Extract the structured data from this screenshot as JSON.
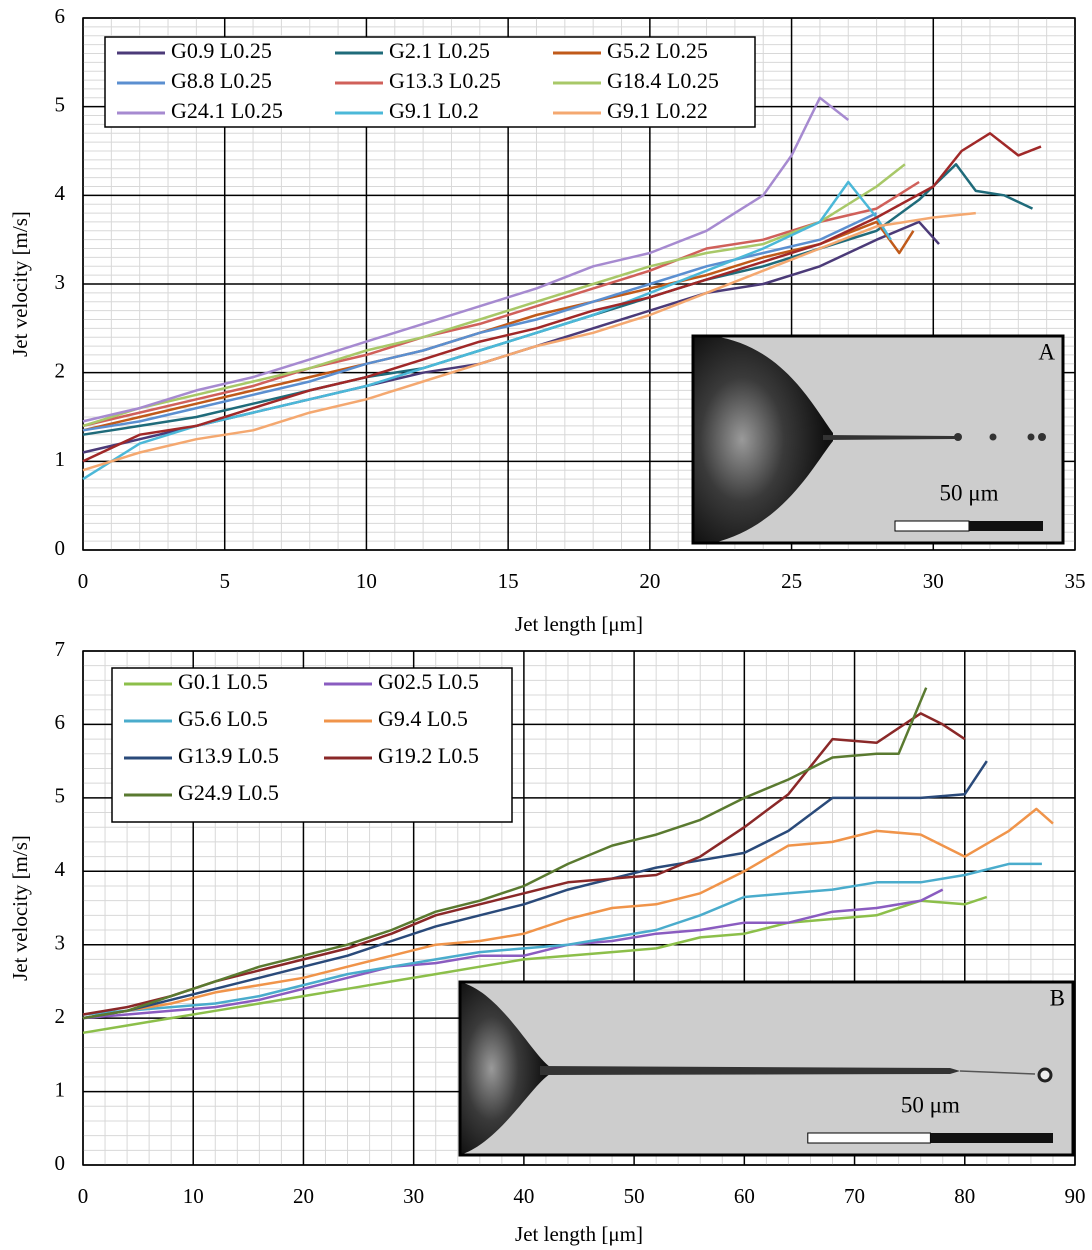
{
  "chart_data": [
    {
      "type": "line",
      "xlabel": "Jet length [μm]",
      "ylabel": "Jet velocity [m/s]",
      "xlim": [
        0,
        35
      ],
      "xticks": [
        0,
        5,
        10,
        15,
        20,
        25,
        30,
        35
      ],
      "ylim": [
        0,
        6
      ],
      "yticks": [
        0,
        1,
        2,
        3,
        4,
        5,
        6
      ],
      "grid": true,
      "minor_grid": {
        "x": 5,
        "y": 10
      },
      "legend": "upper left",
      "inset": {
        "label": "A",
        "scale_label": "50 μm"
      },
      "series": [
        {
          "name": "G0.9 L0.25",
          "color": "#4b3a78",
          "x": [
            0,
            2,
            4,
            6,
            8,
            10,
            12,
            14,
            16,
            18,
            20,
            22,
            24,
            26,
            28,
            29.5,
            30.2
          ],
          "values": [
            1.1,
            1.25,
            1.4,
            1.55,
            1.7,
            1.85,
            2.0,
            2.1,
            2.3,
            2.5,
            2.7,
            2.9,
            3.0,
            3.2,
            3.5,
            3.7,
            3.45
          ]
        },
        {
          "name": "G2.1 L0.25",
          "color": "#1f6b7a",
          "x": [
            0,
            2,
            4,
            6,
            8,
            10,
            12,
            14,
            16,
            18,
            20,
            22,
            24,
            26,
            28,
            29.5,
            30.8,
            31.5,
            32.5,
            33.5
          ],
          "values": [
            1.3,
            1.4,
            1.5,
            1.65,
            1.8,
            1.95,
            2.05,
            2.25,
            2.45,
            2.65,
            2.85,
            3.05,
            3.2,
            3.4,
            3.6,
            3.95,
            4.35,
            4.05,
            4.0,
            3.85
          ]
        },
        {
          "name": "G5.2 L0.25",
          "color": "#c05a1a",
          "x": [
            0,
            2,
            4,
            6,
            8,
            10,
            12,
            14,
            16,
            18,
            20,
            22,
            24,
            26,
            28,
            28.8,
            29.3
          ],
          "values": [
            1.35,
            1.5,
            1.65,
            1.8,
            1.95,
            2.1,
            2.25,
            2.45,
            2.65,
            2.8,
            2.95,
            3.1,
            3.3,
            3.45,
            3.7,
            3.35,
            3.6
          ]
        },
        {
          "name": "G8.8 L0.25",
          "color": "#5b8fd0",
          "x": [
            0,
            2,
            4,
            6,
            8,
            10,
            12,
            14,
            16,
            18,
            20,
            22,
            24,
            26,
            28
          ],
          "values": [
            1.35,
            1.45,
            1.6,
            1.75,
            1.9,
            2.1,
            2.25,
            2.45,
            2.6,
            2.8,
            3.0,
            3.2,
            3.35,
            3.5,
            3.8
          ]
        },
        {
          "name": "G13.3 L0.25",
          "color": "#d0605a",
          "x": [
            0,
            2,
            4,
            6,
            8,
            10,
            12,
            14,
            16,
            18,
            20,
            22,
            24,
            26,
            28,
            29.5
          ],
          "values": [
            1.4,
            1.55,
            1.7,
            1.85,
            2.05,
            2.2,
            2.4,
            2.55,
            2.75,
            2.95,
            3.15,
            3.4,
            3.5,
            3.7,
            3.85,
            4.15
          ]
        },
        {
          "name": "G18.4 L0.25",
          "color": "#a8c868",
          "x": [
            0,
            2,
            4,
            6,
            8,
            10,
            12,
            14,
            16,
            18,
            20,
            22,
            24,
            26,
            28,
            29
          ],
          "values": [
            1.4,
            1.6,
            1.75,
            1.9,
            2.05,
            2.25,
            2.4,
            2.6,
            2.8,
            3.0,
            3.2,
            3.35,
            3.45,
            3.7,
            4.1,
            4.35
          ]
        },
        {
          "name": "G24.1 L0.25",
          "color": "#a68ad0",
          "x": [
            0,
            2,
            4,
            6,
            8,
            10,
            12,
            14,
            16,
            18,
            20,
            22,
            24,
            25,
            26,
            27
          ],
          "values": [
            1.45,
            1.6,
            1.8,
            1.95,
            2.15,
            2.35,
            2.55,
            2.75,
            2.95,
            3.2,
            3.35,
            3.6,
            4.0,
            4.45,
            5.1,
            4.85
          ]
        },
        {
          "name": "G9.1 L0.2",
          "color": "#4bb8d8",
          "x": [
            0,
            2,
            4,
            6,
            8,
            10,
            12,
            14,
            16,
            18,
            20,
            22,
            24,
            26,
            27,
            28,
            28.5
          ],
          "values": [
            0.8,
            1.2,
            1.4,
            1.55,
            1.7,
            1.85,
            2.05,
            2.25,
            2.45,
            2.65,
            2.9,
            3.15,
            3.4,
            3.7,
            4.15,
            3.75,
            3.5
          ]
        },
        {
          "name": "G9.1 L0.22",
          "color": "#f4a870",
          "x": [
            0,
            2,
            4,
            6,
            8,
            10,
            12,
            14,
            16,
            18,
            20,
            22,
            24,
            26,
            28,
            30,
            31.5
          ],
          "values": [
            0.9,
            1.1,
            1.25,
            1.35,
            1.55,
            1.7,
            1.9,
            2.1,
            2.3,
            2.45,
            2.65,
            2.9,
            3.15,
            3.4,
            3.65,
            3.75,
            3.8
          ]
        },
        {
          "color": "#a02828",
          "x": [
            0,
            2,
            4,
            6,
            8,
            10,
            12,
            14,
            16,
            18,
            20,
            22,
            24,
            26,
            28,
            30,
            31,
            32,
            33,
            33.8
          ],
          "values": [
            1.0,
            1.3,
            1.4,
            1.6,
            1.8,
            1.95,
            2.15,
            2.35,
            2.5,
            2.7,
            2.85,
            3.05,
            3.25,
            3.45,
            3.75,
            4.1,
            4.5,
            4.7,
            4.45,
            4.55
          ]
        }
      ]
    },
    {
      "type": "line",
      "xlabel": "Jet length [μm]",
      "ylabel": "Jet velocity [m/s]",
      "xlim": [
        0,
        90
      ],
      "xticks": [
        0,
        10,
        20,
        30,
        40,
        50,
        60,
        70,
        80,
        90
      ],
      "ylim": [
        0,
        7
      ],
      "yticks": [
        0,
        1,
        2,
        3,
        4,
        5,
        6,
        7
      ],
      "grid": true,
      "minor_grid": {
        "x": 5,
        "y": 5
      },
      "legend": "upper left",
      "inset": {
        "label": "B",
        "scale_label": "50 μm"
      },
      "series": [
        {
          "name": "G0.1 L0.5",
          "color": "#8cbf4a",
          "x": [
            0,
            4,
            8,
            12,
            16,
            20,
            24,
            28,
            32,
            36,
            40,
            44,
            48,
            52,
            56,
            60,
            64,
            68,
            72,
            76,
            80,
            82
          ],
          "values": [
            1.8,
            1.9,
            2.0,
            2.1,
            2.2,
            2.3,
            2.4,
            2.5,
            2.6,
            2.7,
            2.8,
            2.85,
            2.9,
            2.95,
            3.1,
            3.15,
            3.3,
            3.35,
            3.4,
            3.6,
            3.55,
            3.65
          ]
        },
        {
          "name": "G02.5 L0.5",
          "color": "#8a5cc0",
          "x": [
            0,
            4,
            8,
            12,
            16,
            20,
            24,
            28,
            32,
            36,
            40,
            44,
            48,
            52,
            56,
            60,
            64,
            68,
            72,
            76,
            78
          ],
          "values": [
            2.0,
            2.05,
            2.1,
            2.15,
            2.25,
            2.4,
            2.55,
            2.7,
            2.75,
            2.85,
            2.85,
            3.0,
            3.05,
            3.15,
            3.2,
            3.3,
            3.3,
            3.45,
            3.5,
            3.6,
            3.75
          ]
        },
        {
          "name": "G5.6 L0.5",
          "color": "#4aaccc",
          "x": [
            0,
            4,
            8,
            12,
            16,
            20,
            24,
            28,
            32,
            36,
            40,
            44,
            48,
            52,
            56,
            60,
            64,
            68,
            72,
            76,
            80,
            84,
            87
          ],
          "values": [
            2.05,
            2.1,
            2.15,
            2.2,
            2.3,
            2.45,
            2.6,
            2.7,
            2.8,
            2.9,
            2.95,
            3.0,
            3.1,
            3.2,
            3.4,
            3.65,
            3.7,
            3.75,
            3.85,
            3.85,
            3.95,
            4.1,
            4.1
          ]
        },
        {
          "name": "G9.4 L0.5",
          "color": "#f0944a",
          "x": [
            0,
            4,
            8,
            12,
            16,
            20,
            24,
            28,
            32,
            36,
            40,
            44,
            48,
            52,
            56,
            60,
            64,
            68,
            72,
            76,
            80,
            84,
            86.5,
            88
          ],
          "values": [
            2.0,
            2.1,
            2.2,
            2.35,
            2.45,
            2.55,
            2.7,
            2.85,
            3.0,
            3.05,
            3.15,
            3.35,
            3.5,
            3.55,
            3.7,
            4.0,
            4.35,
            4.4,
            4.55,
            4.5,
            4.2,
            4.55,
            4.85,
            4.65
          ]
        },
        {
          "name": "G13.9 L0.5",
          "color": "#2a4a7a",
          "x": [
            0,
            4,
            8,
            12,
            16,
            20,
            24,
            28,
            32,
            36,
            40,
            44,
            48,
            52,
            56,
            60,
            64,
            68,
            72,
            76,
            80,
            82
          ],
          "values": [
            2.0,
            2.1,
            2.25,
            2.4,
            2.55,
            2.7,
            2.85,
            3.05,
            3.25,
            3.4,
            3.55,
            3.75,
            3.9,
            4.05,
            4.15,
            4.25,
            4.55,
            5.0,
            5.0,
            5.0,
            5.05,
            5.5
          ]
        },
        {
          "name": "G19.2 L0.5",
          "color": "#8a2828",
          "x": [
            0,
            4,
            8,
            12,
            16,
            20,
            24,
            28,
            32,
            36,
            40,
            44,
            48,
            52,
            56,
            60,
            64,
            68,
            72,
            76,
            78,
            80
          ],
          "values": [
            2.05,
            2.15,
            2.3,
            2.5,
            2.65,
            2.8,
            2.95,
            3.15,
            3.4,
            3.55,
            3.7,
            3.85,
            3.9,
            3.95,
            4.2,
            4.6,
            5.05,
            5.8,
            5.75,
            6.15,
            6.0,
            5.8
          ]
        },
        {
          "name": "G24.9 L0.5",
          "color": "#5a7a30",
          "x": [
            0,
            4,
            8,
            12,
            16,
            20,
            24,
            28,
            32,
            36,
            40,
            44,
            48,
            52,
            56,
            60,
            64,
            68,
            72,
            74,
            76.5
          ],
          "values": [
            2.0,
            2.1,
            2.3,
            2.5,
            2.7,
            2.85,
            3.0,
            3.2,
            3.45,
            3.6,
            3.8,
            4.1,
            4.35,
            4.5,
            4.7,
            5.0,
            5.25,
            5.55,
            5.6,
            5.6,
            6.5
          ]
        }
      ]
    }
  ]
}
